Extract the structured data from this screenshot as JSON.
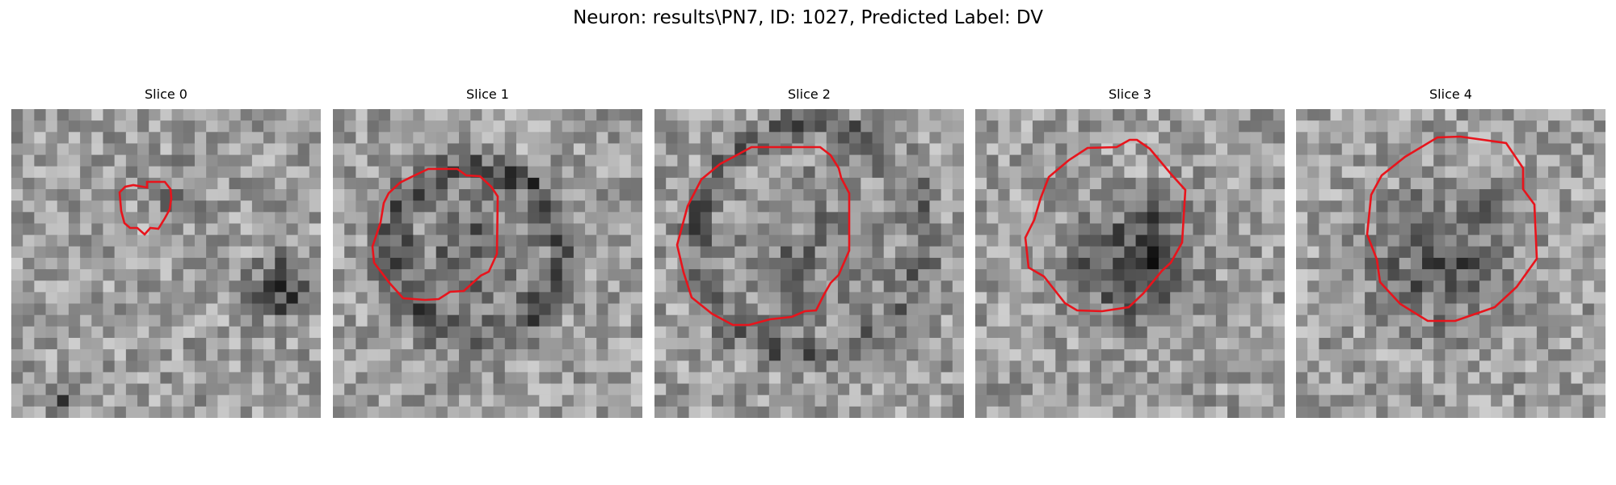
{
  "figure": {
    "title": "Neuron: results\\PN7, ID: 1027, Predicted Label: DV"
  },
  "panels": [
    {
      "title": "Slice 0"
    },
    {
      "title": "Slice 1"
    },
    {
      "title": "Slice 2"
    },
    {
      "title": "Slice 3"
    },
    {
      "title": "Slice 4"
    }
  ],
  "colors": {
    "contour": "#e8141c",
    "background": "#ffffff"
  }
}
